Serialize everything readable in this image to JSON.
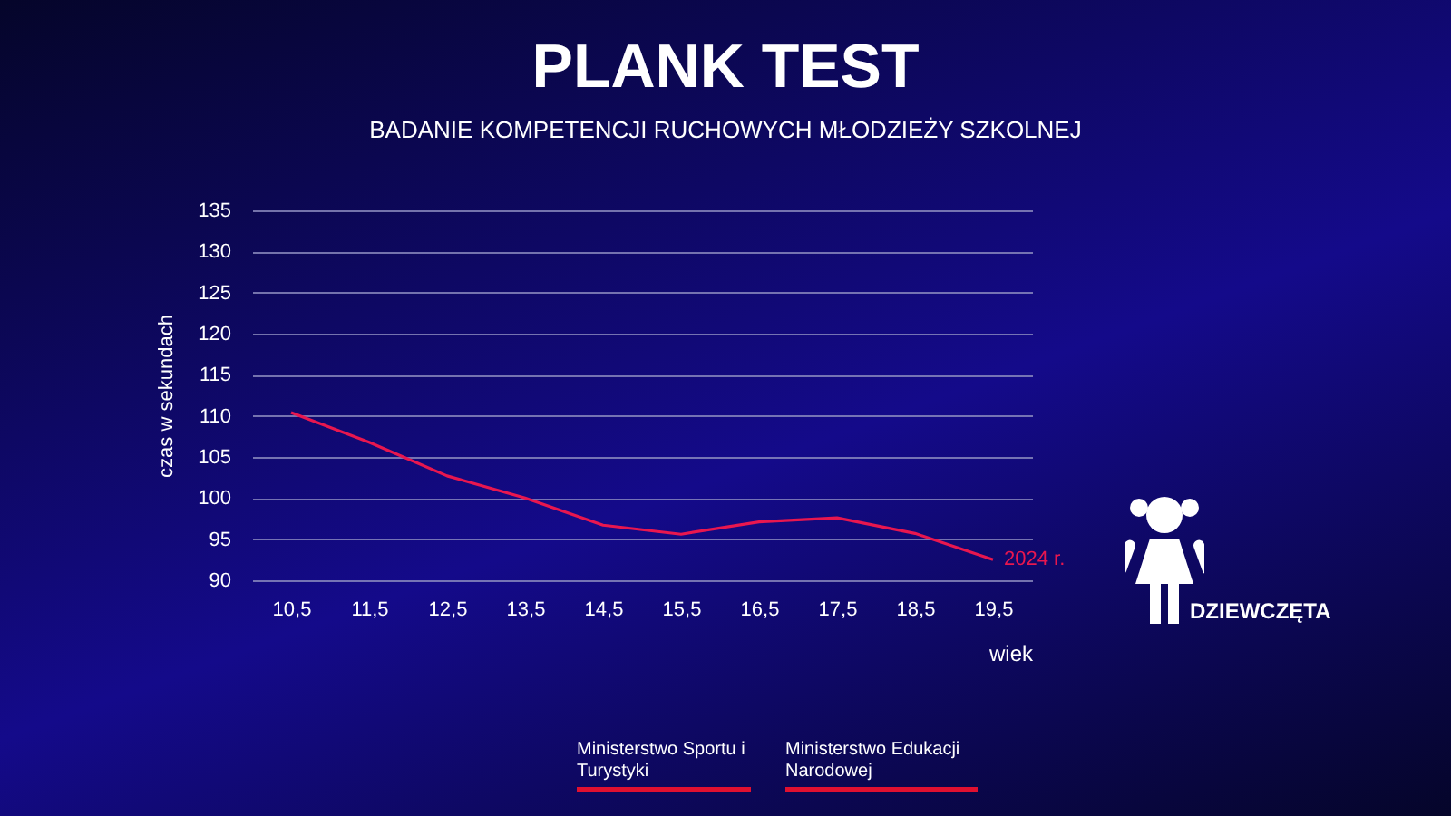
{
  "chart_data": {
    "type": "line",
    "title": "PLANK TEST",
    "subtitle": "BADANIE KOMPETENCJI RUCHOWYCH MŁODZIEŻY SZKOLNEJ",
    "xlabel": "wiek",
    "ylabel": "czas w sekundach",
    "categories": [
      "10,5",
      "11,5",
      "12,5",
      "13,5",
      "14,5",
      "15,5",
      "16,5",
      "17,5",
      "18,5",
      "19,5"
    ],
    "series": [
      {
        "name": "2024 r.",
        "color": "#e8174f",
        "values": [
          110.4,
          106.8,
          102.7,
          100,
          96.7,
          95.6,
          97.1,
          97.6,
          95.7,
          92.5
        ]
      }
    ],
    "ylim": [
      90,
      135
    ],
    "yticks": [
      90,
      95,
      100,
      105,
      110,
      115,
      120,
      125,
      130,
      135
    ],
    "grid": "y",
    "legend": false,
    "marker": "none",
    "line_style": "solid",
    "annotations": [
      "DZIEWCZĘTA",
      "Ministerstwo Sportu i Turystyki",
      "Ministerstwo Edukacji Narodowej"
    ]
  }
}
